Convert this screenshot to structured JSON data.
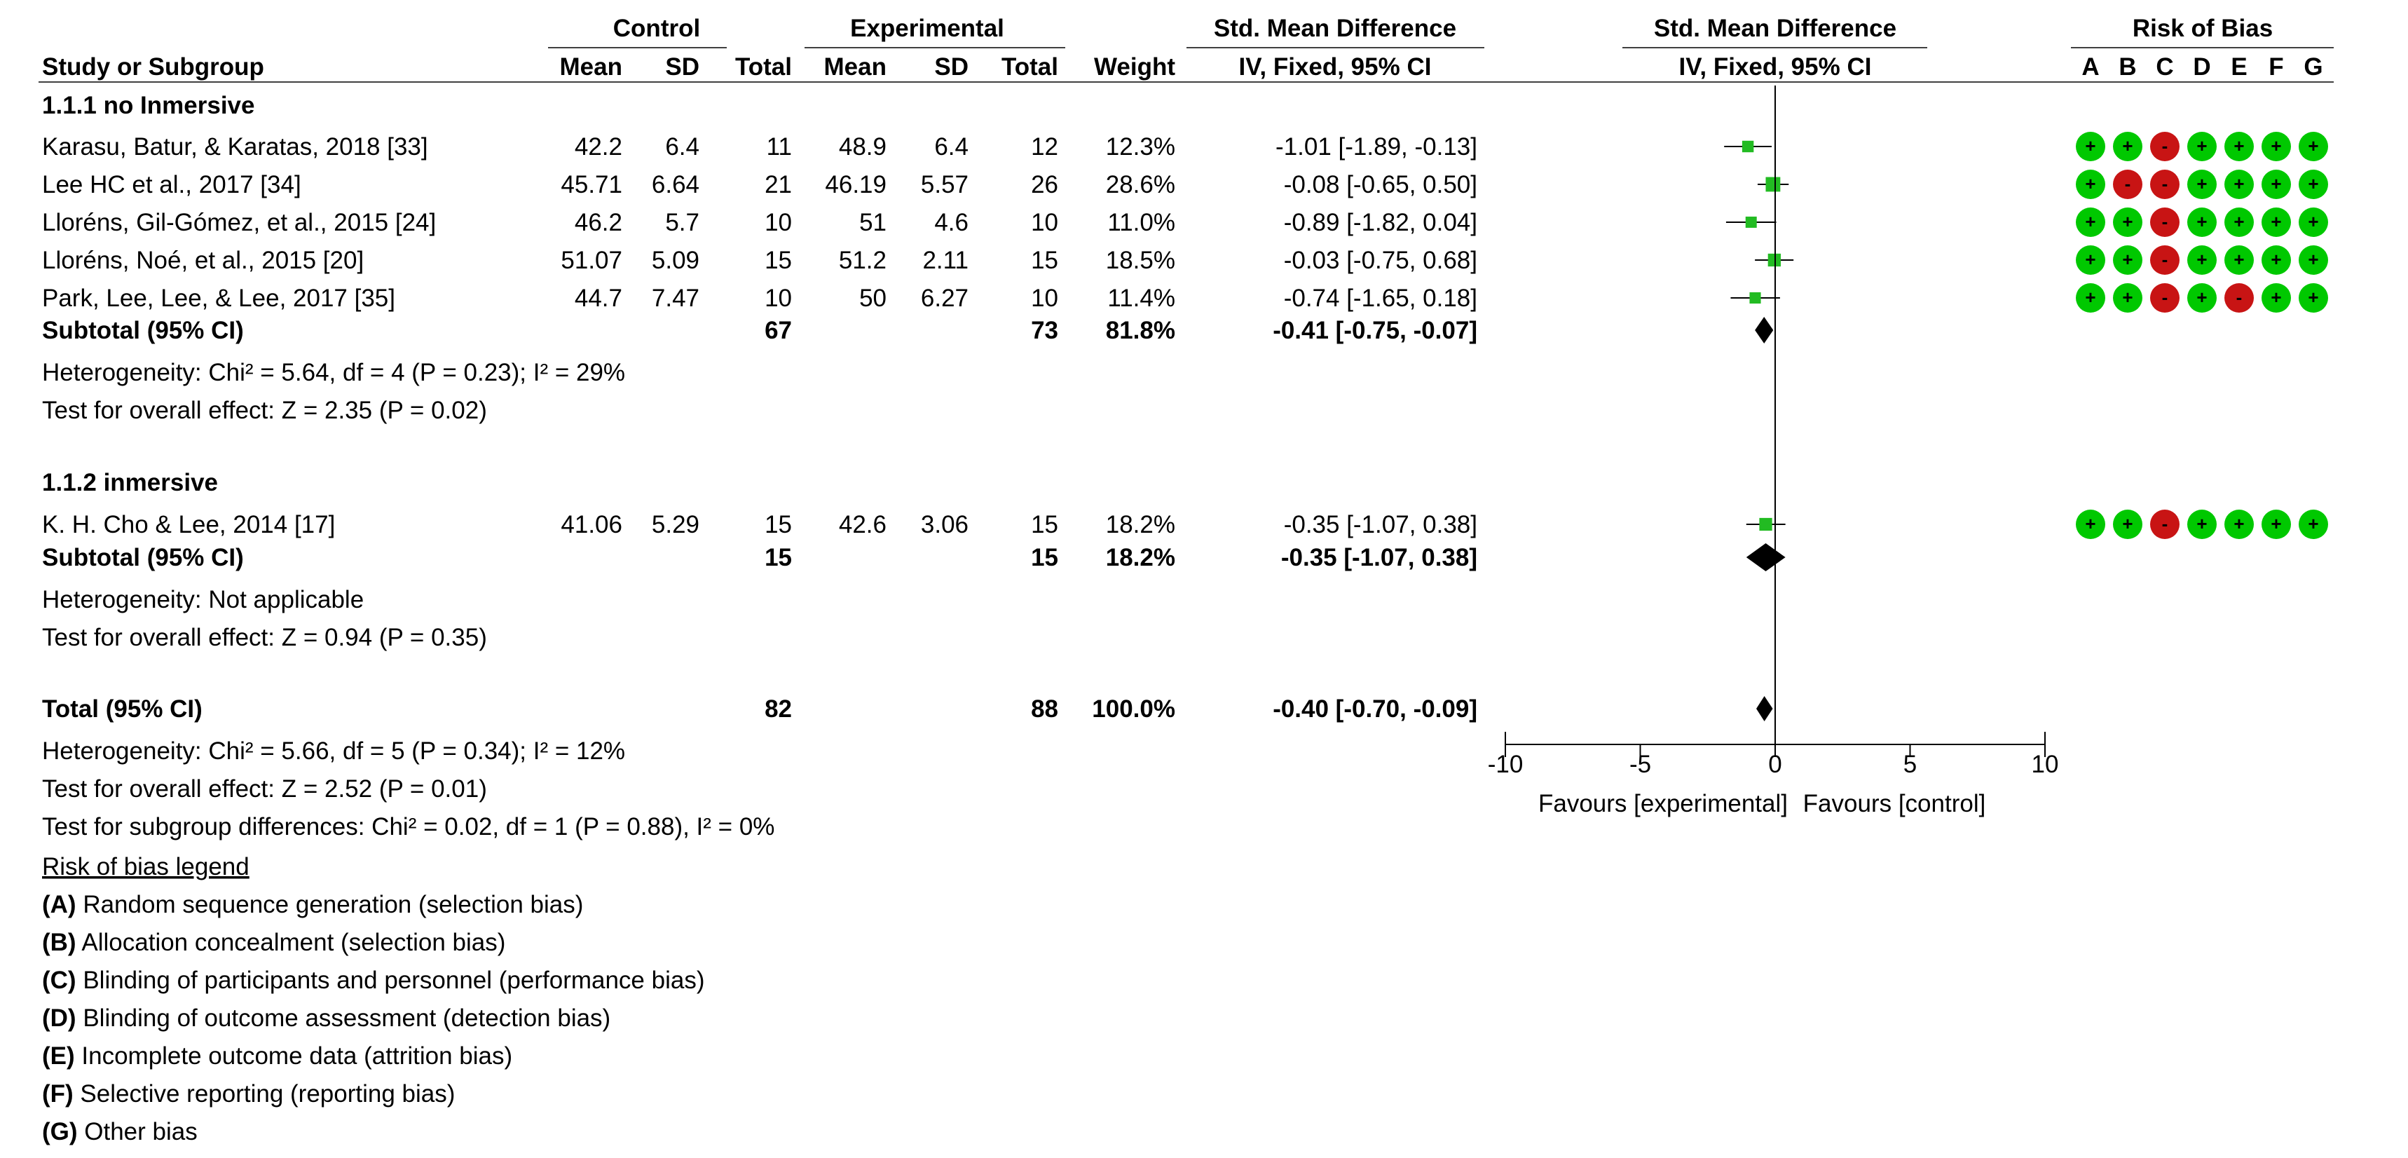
{
  "header": {
    "control": "Control",
    "experimental": "Experimental",
    "smd_title": "Std. Mean Difference",
    "smd_sub": "IV, Fixed, 95% CI",
    "plot_title": "Std. Mean Difference",
    "plot_sub": "IV, Fixed, 95% CI",
    "rob_title": "Risk of Bias",
    "study_col": "Study or Subgroup",
    "mean": "Mean",
    "sd": "SD",
    "total": "Total",
    "weight": "Weight",
    "rob_letters": [
      "A",
      "B",
      "C",
      "D",
      "E",
      "F",
      "G"
    ]
  },
  "chart_data": {
    "type": "forest",
    "x_axis": {
      "min": -10,
      "max": 10,
      "ticks": [
        "-10",
        "-5",
        "0",
        "5",
        "10"
      ],
      "null_line": 0
    },
    "favours_left": "Favours [experimental]",
    "favours_right": "Favours [control]",
    "groups": [
      {
        "title": "1.1.1 no Inmersive",
        "studies": [
          {
            "name": "Karasu, Batur, & Karatas, 2018 [33]",
            "c_mean": "42.2",
            "c_sd": "6.4",
            "c_total": "11",
            "e_mean": "48.9",
            "e_sd": "6.4",
            "e_total": "12",
            "weight": "12.3%",
            "ci_text": "-1.01 [-1.89, -0.13]",
            "est": -1.01,
            "lo": -1.89,
            "hi": -0.13,
            "w": 12.3,
            "rob": [
              "+",
              "+",
              "-",
              "+",
              "+",
              "+",
              "+"
            ]
          },
          {
            "name": "Lee HC et al., 2017 [34]",
            "c_mean": "45.71",
            "c_sd": "6.64",
            "c_total": "21",
            "e_mean": "46.19",
            "e_sd": "5.57",
            "e_total": "26",
            "weight": "28.6%",
            "ci_text": "-0.08 [-0.65, 0.50]",
            "est": -0.08,
            "lo": -0.65,
            "hi": 0.5,
            "w": 28.6,
            "rob": [
              "+",
              "-",
              "-",
              "+",
              "+",
              "+",
              "+"
            ]
          },
          {
            "name": "Lloréns, Gil-Gómez, et al., 2015 [24]",
            "c_mean": "46.2",
            "c_sd": "5.7",
            "c_total": "10",
            "e_mean": "51",
            "e_sd": "4.6",
            "e_total": "10",
            "weight": "11.0%",
            "ci_text": "-0.89 [-1.82, 0.04]",
            "est": -0.89,
            "lo": -1.82,
            "hi": 0.04,
            "w": 11.0,
            "rob": [
              "+",
              "+",
              "-",
              "+",
              "+",
              "+",
              "+"
            ]
          },
          {
            "name": "Lloréns, Noé, et al., 2015 [20]",
            "c_mean": "51.07",
            "c_sd": "5.09",
            "c_total": "15",
            "e_mean": "51.2",
            "e_sd": "2.11",
            "e_total": "15",
            "weight": "18.5%",
            "ci_text": "-0.03 [-0.75, 0.68]",
            "est": -0.03,
            "lo": -0.75,
            "hi": 0.68,
            "w": 18.5,
            "rob": [
              "+",
              "+",
              "-",
              "+",
              "+",
              "+",
              "+"
            ]
          },
          {
            "name": "Park, Lee, Lee, & Lee, 2017 [35]",
            "c_mean": "44.7",
            "c_sd": "7.47",
            "c_total": "10",
            "e_mean": "50",
            "e_sd": "6.27",
            "e_total": "10",
            "weight": "11.4%",
            "ci_text": "-0.74 [-1.65, 0.18]",
            "est": -0.74,
            "lo": -1.65,
            "hi": 0.18,
            "w": 11.4,
            "rob": [
              "+",
              "+",
              "-",
              "+",
              "-",
              "+",
              "+"
            ]
          }
        ],
        "subtotal": {
          "label": "Subtotal (95% CI)",
          "c_total": "67",
          "e_total": "73",
          "weight": "81.8%",
          "ci_text": "-0.41 [-0.75, -0.07]",
          "est": -0.41,
          "lo": -0.75,
          "hi": -0.07
        },
        "heterogeneity": "Heterogeneity: Chi² = 5.64, df = 4 (P = 0.23); I² = 29%",
        "overall": "Test for overall effect: Z = 2.35 (P = 0.02)"
      },
      {
        "title": "1.1.2 inmersive",
        "studies": [
          {
            "name": "K. H. Cho & Lee, 2014 [17]",
            "c_mean": "41.06",
            "c_sd": "5.29",
            "c_total": "15",
            "e_mean": "42.6",
            "e_sd": "3.06",
            "e_total": "15",
            "weight": "18.2%",
            "ci_text": "-0.35 [-1.07, 0.38]",
            "est": -0.35,
            "lo": -1.07,
            "hi": 0.38,
            "w": 18.2,
            "rob": [
              "+",
              "+",
              "-",
              "+",
              "+",
              "+",
              "+"
            ]
          }
        ],
        "subtotal": {
          "label": "Subtotal (95% CI)",
          "c_total": "15",
          "e_total": "15",
          "weight": "18.2%",
          "ci_text": "-0.35 [-1.07, 0.38]",
          "est": -0.35,
          "lo": -1.07,
          "hi": 0.38
        },
        "heterogeneity": "Heterogeneity: Not applicable",
        "overall": "Test for overall effect: Z = 0.94 (P = 0.35)"
      }
    ],
    "total": {
      "label": "Total (95% CI)",
      "c_total": "82",
      "e_total": "88",
      "weight": "100.0%",
      "ci_text": "-0.40 [-0.70, -0.09]",
      "est": -0.4,
      "lo": -0.7,
      "hi": -0.09
    },
    "total_heterogeneity": "Heterogeneity: Chi² = 5.66, df = 5 (P = 0.34); I² = 12%",
    "total_overall": "Test for overall effect: Z = 2.52 (P = 0.01)",
    "subgroup_diff": "Test for subgroup differences: Chi² = 0.02, df = 1 (P = 0.88), I² = 0%"
  },
  "legend": {
    "title": "Risk of bias legend",
    "items": [
      {
        "key": "(A)",
        "text": " Random sequence generation (selection bias)"
      },
      {
        "key": "(B)",
        "text": " Allocation concealment (selection bias)"
      },
      {
        "key": "(C)",
        "text": " Blinding of participants and personnel (performance bias)"
      },
      {
        "key": "(D)",
        "text": " Blinding of outcome assessment (detection bias)"
      },
      {
        "key": "(E)",
        "text": " Incomplete outcome data (attrition bias)"
      },
      {
        "key": "(F)",
        "text": " Selective reporting (reporting bias)"
      },
      {
        "key": "(G)",
        "text": " Other bias"
      }
    ]
  },
  "colors": {
    "low_risk": "#00c800",
    "high_risk": "#c81414",
    "marker": "#22bb22",
    "ink": "#000000"
  }
}
